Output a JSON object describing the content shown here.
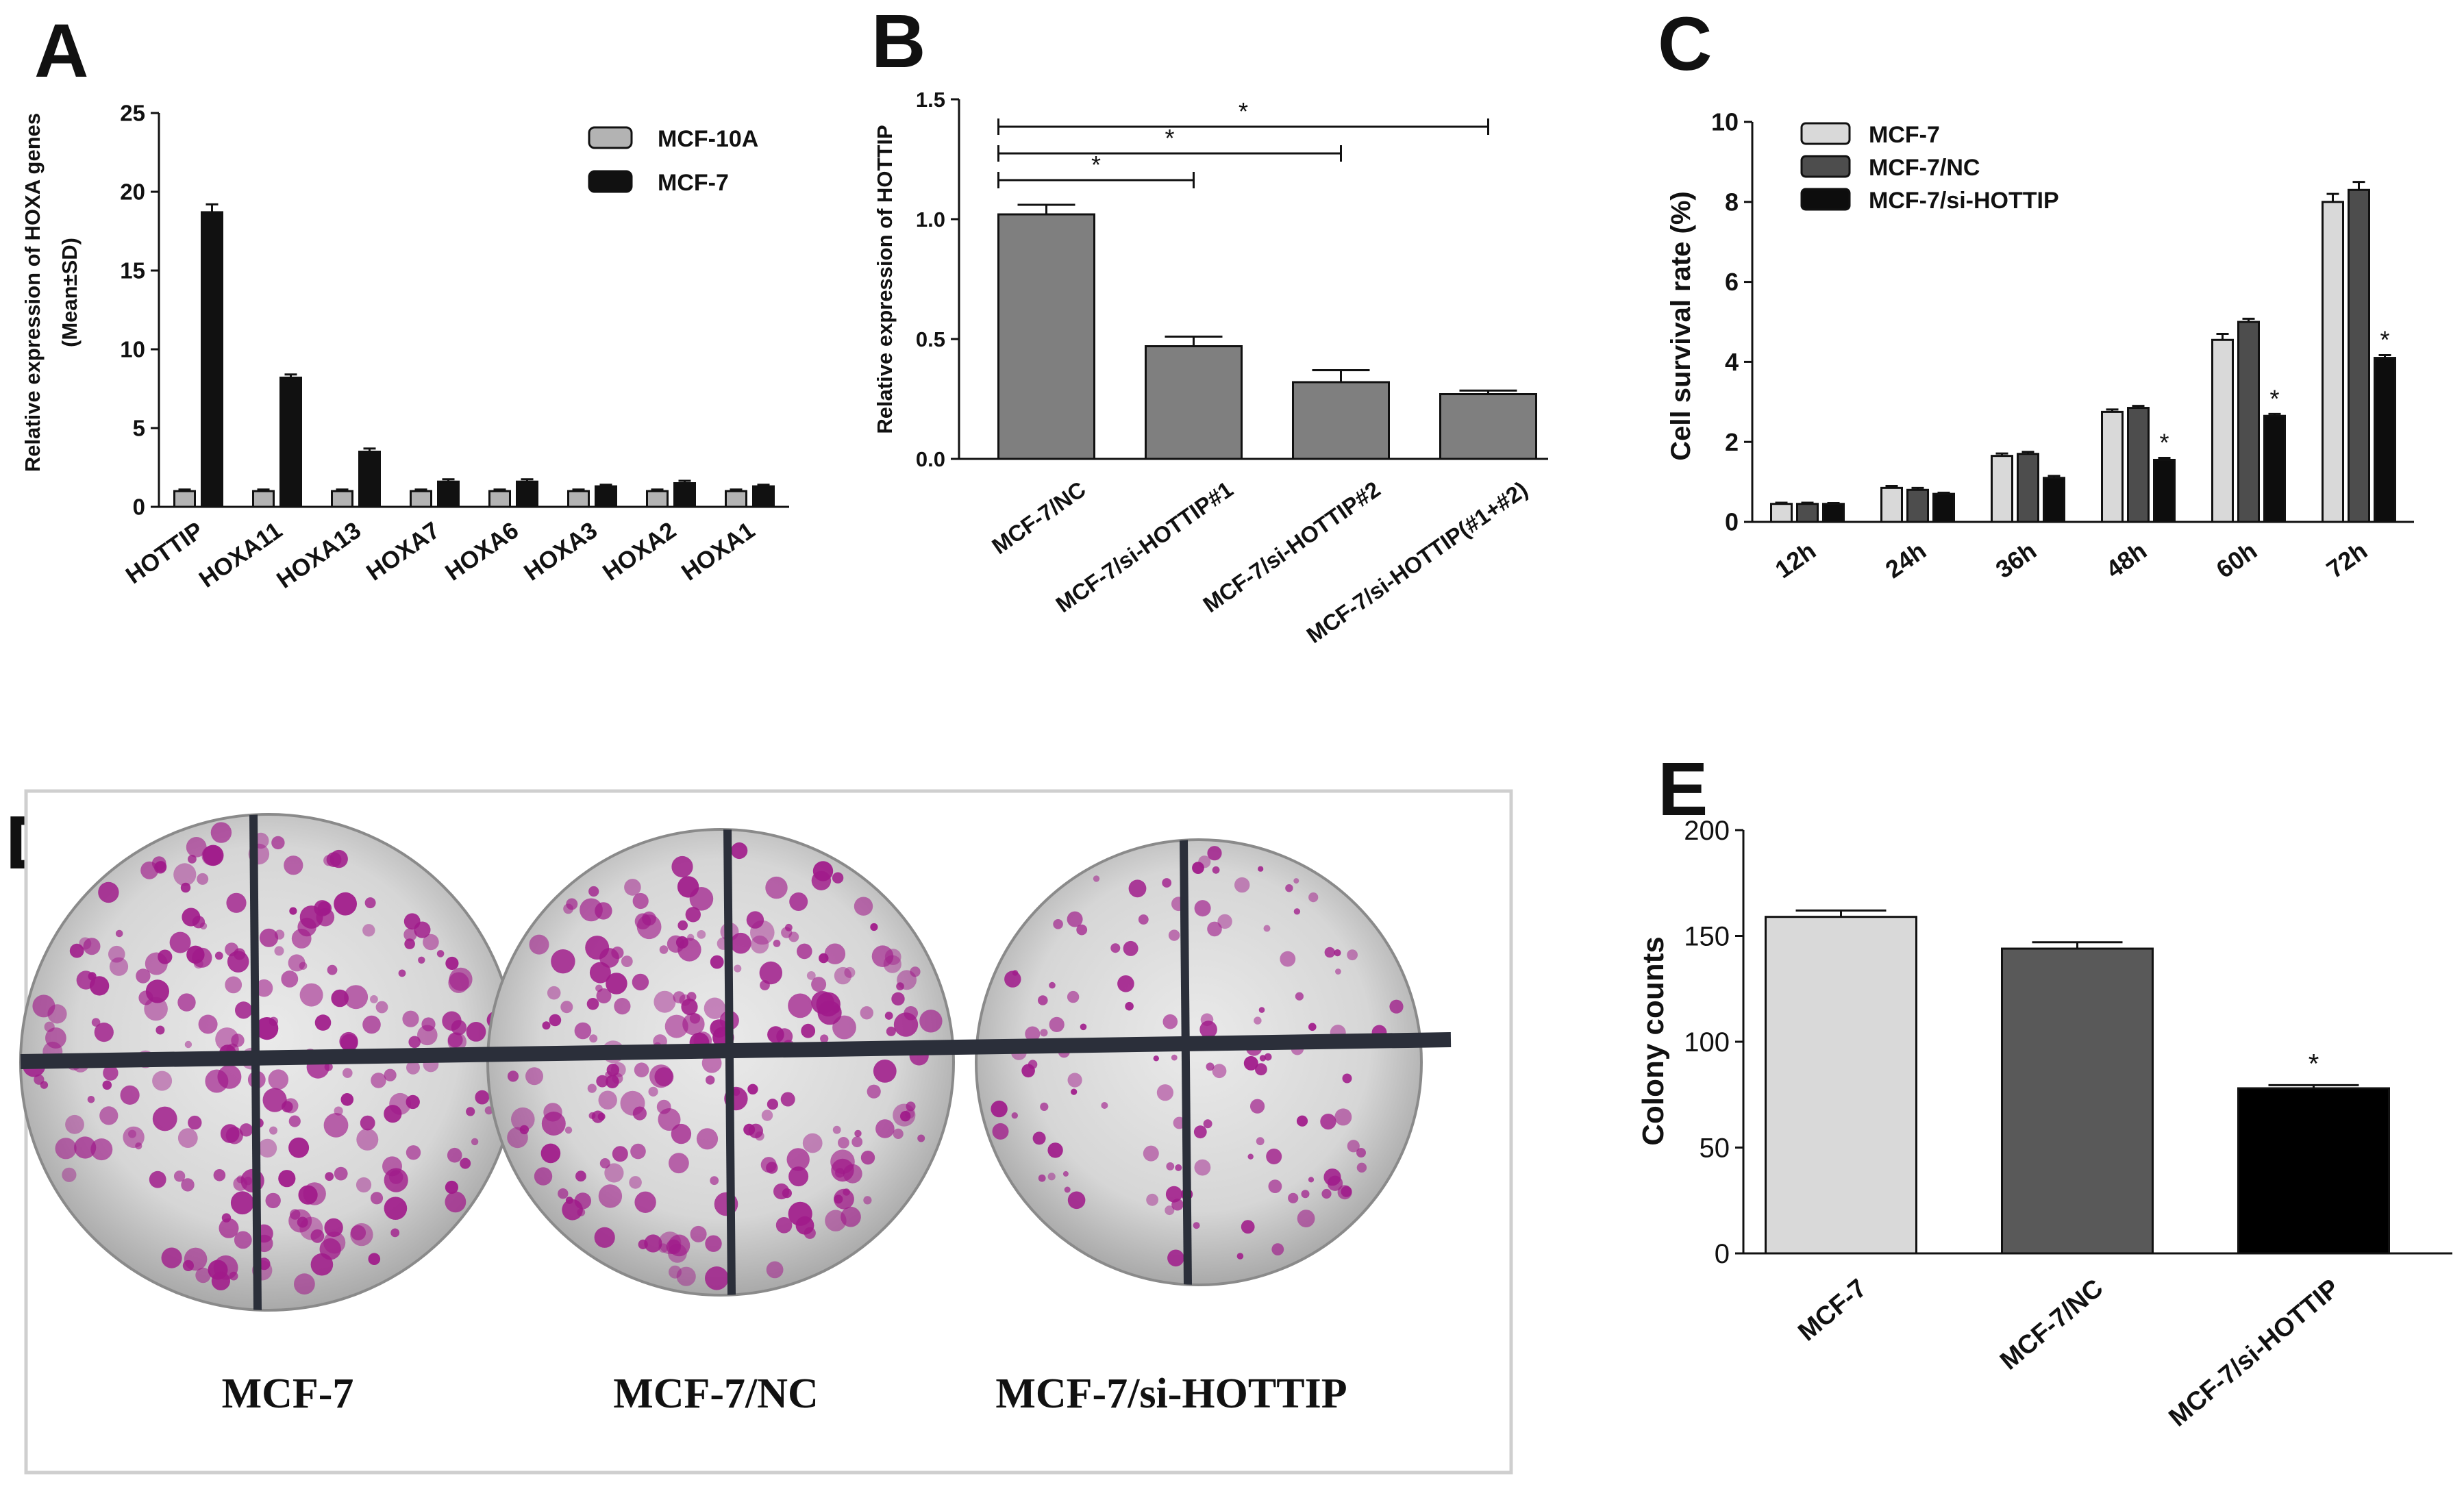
{
  "panels": {
    "A": {
      "letter": "A",
      "chart_data": {
        "type": "bar",
        "title": "",
        "xlabel": "",
        "ylabel_line1": "Relative expression of HOXA genes",
        "ylabel_line2": "(Mean±SD)",
        "ylim": [
          0,
          25
        ],
        "yticks": [
          "0",
          "5",
          "10",
          "15",
          "20",
          "25"
        ],
        "categories": [
          "HOTTIP",
          "HOXA11",
          "HOXA13",
          "HOXA7",
          "HOXA6",
          "HOXA3",
          "HOXA2",
          "HOXA1"
        ],
        "series": [
          {
            "name": "MCF-10A",
            "color": "#b3b3b3",
            "values": [
              1.0,
              1.0,
              1.0,
              1.0,
              1.0,
              1.0,
              1.0,
              1.0
            ],
            "err": [
              0.1,
              0.1,
              0.1,
              0.1,
              0.1,
              0.1,
              0.1,
              0.1
            ]
          },
          {
            "name": "MCF-7",
            "color": "#111111",
            "values": [
              18.7,
              8.2,
              3.5,
              1.6,
              1.6,
              1.3,
              1.5,
              1.3
            ],
            "err": [
              0.5,
              0.2,
              0.2,
              0.15,
              0.15,
              0.1,
              0.15,
              0.1
            ]
          }
        ],
        "legend": "top-right"
      }
    },
    "B": {
      "letter": "B",
      "chart_data": {
        "type": "bar",
        "title": "",
        "xlabel": "",
        "ylabel": "Relative expression of HOTTIP",
        "ylim": [
          0,
          1.5
        ],
        "yticks": [
          "0.0",
          "0.5",
          "1.0",
          "1.5"
        ],
        "categories": [
          "MCF-7/NC",
          "MCF-7/si-HOTTIP#1",
          "MCF-7/si-HOTTIP#2",
          "MCF-7/si-HOTTIP(#1+#2)"
        ],
        "values": [
          1.02,
          0.47,
          0.32,
          0.27
        ],
        "err": [
          0.04,
          0.04,
          0.05,
          0.015
        ],
        "color": "#7f7f7f",
        "significance": [
          {
            "from": 0,
            "to": 1,
            "label": "*"
          },
          {
            "from": 0,
            "to": 2,
            "label": "*"
          },
          {
            "from": 0,
            "to": 3,
            "label": "*"
          }
        ]
      }
    },
    "C": {
      "letter": "C",
      "chart_data": {
        "type": "bar",
        "title": "",
        "xlabel": "",
        "ylabel": "Cell survival rate (%)",
        "ylim": [
          0,
          10
        ],
        "yticks": [
          "0",
          "2",
          "4",
          "6",
          "8",
          "10"
        ],
        "categories": [
          "12h",
          "24h",
          "36h",
          "48h",
          "60h",
          "72h"
        ],
        "series": [
          {
            "name": "MCF-7",
            "color": "#d9d9d9",
            "values": [
              0.45,
              0.85,
              1.65,
              2.75,
              4.55,
              8.0
            ],
            "err": [
              0.03,
              0.05,
              0.06,
              0.06,
              0.15,
              0.2
            ]
          },
          {
            "name": "MCF-7/NC",
            "color": "#4d4d4d",
            "values": [
              0.45,
              0.8,
              1.7,
              2.85,
              5.0,
              8.3
            ],
            "err": [
              0.03,
              0.05,
              0.05,
              0.05,
              0.08,
              0.2
            ]
          },
          {
            "name": "MCF-7/si-HOTTIP",
            "color": "#0d0d0d",
            "values": [
              0.45,
              0.7,
              1.1,
              1.55,
              2.65,
              4.1
            ],
            "err": [
              0.02,
              0.03,
              0.05,
              0.05,
              0.05,
              0.07
            ]
          }
        ],
        "significance": [
          "",
          "",
          "",
          "*",
          "*",
          "*"
        ],
        "legend": "top-left"
      }
    },
    "D": {
      "letter": "D",
      "plates": [
        "MCF-7",
        "MCF-7/NC",
        "MCF-7/si-HOTTIP"
      ]
    },
    "E": {
      "letter": "E",
      "chart_data": {
        "type": "bar",
        "title": "",
        "xlabel": "",
        "ylabel": "Colony counts",
        "ylim": [
          0,
          200
        ],
        "yticks": [
          "0",
          "50",
          "100",
          "150",
          "200"
        ],
        "categories": [
          "MCF-7",
          "MCF-7/NC",
          "MCF-7/si-HOTTIP"
        ],
        "values": [
          159,
          144,
          78
        ],
        "err": [
          3,
          3,
          1.5
        ],
        "colors": [
          "#d9d9d9",
          "#595959",
          "#000000"
        ],
        "significance": [
          "",
          "",
          "*"
        ]
      }
    }
  }
}
